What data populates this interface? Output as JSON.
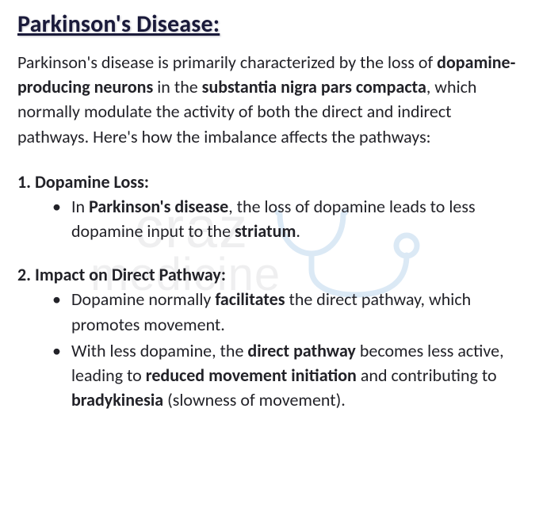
{
  "title": "Parkinson's Disease:",
  "intro_parts": {
    "t1": "Parkinson's disease is primarily characterized by the loss of ",
    "b1": "dopamine-producing neurons",
    "t2": " in the ",
    "b2": "substantia nigra pars compacta",
    "t3": ", which normally modulate the activity of both the direct and indirect pathways. Here's how the imbalance affects the pathways:"
  },
  "sections": [
    {
      "num": "1.",
      "head": "Dopamine Loss",
      "bullets": [
        {
          "runs": [
            {
              "t": "In ",
              "b": false
            },
            {
              "t": "Parkinson's disease",
              "b": true
            },
            {
              "t": ", the loss of dopamine leads to less dopamine input to the ",
              "b": false
            },
            {
              "t": "striatum",
              "b": true
            },
            {
              "t": ".",
              "b": false
            }
          ]
        }
      ]
    },
    {
      "num": "2.",
      "head": "Impact on Direct Pathway",
      "bullets": [
        {
          "runs": [
            {
              "t": "Dopamine normally ",
              "b": false
            },
            {
              "t": "facilitates",
              "b": true
            },
            {
              "t": " the direct pathway, which promotes movement.",
              "b": false
            }
          ]
        },
        {
          "runs": [
            {
              "t": "With less dopamine, the ",
              "b": false
            },
            {
              "t": "direct pathway",
              "b": true
            },
            {
              "t": " becomes less active, leading to ",
              "b": false
            },
            {
              "t": "reduced movement initiation",
              "b": true
            },
            {
              "t": " and contributing to ",
              "b": false
            },
            {
              "t": "bradykinesia",
              "b": true
            },
            {
              "t": " (slowness of movement).",
              "b": false
            }
          ]
        }
      ]
    }
  ],
  "watermark": {
    "top": "craz",
    "bottom": "medicine"
  },
  "colors": {
    "title": "#1a1a3a",
    "body": "#222228",
    "watermark_text": "#c7c9cc",
    "watermark_accent": "#6aa3d8",
    "bg": "#ffffff"
  }
}
